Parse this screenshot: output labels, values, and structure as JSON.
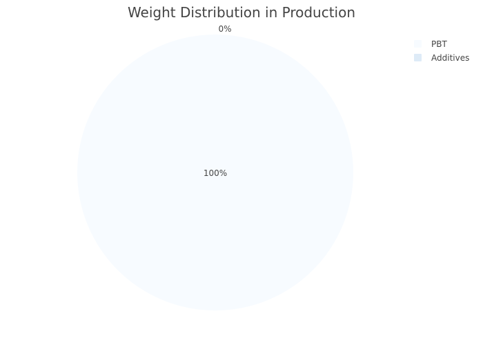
{
  "chart_data": {
    "type": "pie",
    "title": "Weight Distribution in Production",
    "labels": [
      "PBT",
      "Additives"
    ],
    "values": [
      100,
      0
    ],
    "display_labels": [
      "100%",
      "0%"
    ],
    "colors": [
      "#f7fbff",
      "#deebf7"
    ],
    "legend_position": "top-right"
  }
}
